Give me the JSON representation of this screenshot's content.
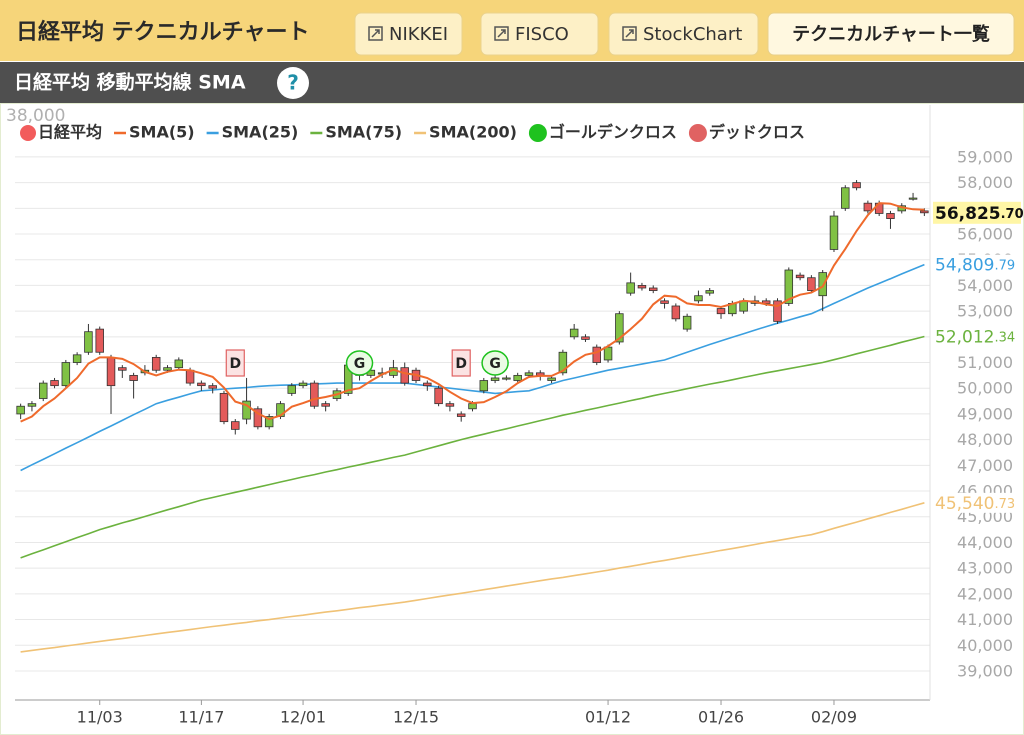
{
  "header": {
    "title": "日経平均 テクニカルチャート",
    "links": [
      "NIKKEI",
      "FISCO",
      "StockChart"
    ],
    "list_button": "テクニカルチャート一覧"
  },
  "subheader": {
    "title": "日経平均 移動平均線 SMA",
    "help": "?"
  },
  "chart_data": {
    "type": "candlestick",
    "corner_label": "38,000",
    "categories": [
      null,
      null,
      null,
      null,
      null,
      null,
      null,
      "11/03",
      null,
      null,
      null,
      null,
      null,
      null,
      null,
      null,
      "11/17",
      null,
      null,
      null,
      null,
      null,
      null,
      null,
      null,
      "12/01",
      null,
      null,
      null,
      null,
      null,
      null,
      null,
      null,
      null,
      "12/15",
      null,
      null,
      null,
      null,
      null,
      null,
      null,
      null,
      null,
      null,
      null,
      null,
      null,
      null,
      null,
      null,
      "01/12",
      null,
      null,
      null,
      null,
      null,
      null,
      null,
      null,
      null,
      "01/26",
      null,
      null,
      null,
      null,
      null,
      null,
      null,
      null,
      null,
      "02/09",
      null,
      null,
      null,
      null,
      null,
      null,
      null,
      null
    ],
    "ylim": [
      37870,
      61020
    ],
    "yticks": [
      {
        "value": 39000,
        "label": "39,000"
      },
      {
        "value": 40000,
        "label": "40,000"
      },
      {
        "value": 41000,
        "label": "41,000"
      },
      {
        "value": 42000,
        "label": "42,000"
      },
      {
        "value": 43000,
        "label": "43,000"
      },
      {
        "value": 44000,
        "label": "44,000"
      },
      {
        "value": 45000,
        "label": "45,000"
      },
      {
        "value": 46000,
        "label": "46,000"
      },
      {
        "value": 47000,
        "label": "47,000"
      },
      {
        "value": 48000,
        "label": "48,000"
      },
      {
        "value": 49000,
        "label": "49,000"
      },
      {
        "value": 50000,
        "label": "50,000"
      },
      {
        "value": 51000,
        "label": "51,000"
      },
      {
        "value": 52000,
        "label": "52,000"
      },
      {
        "value": 53000,
        "label": "53,000"
      },
      {
        "value": 54000,
        "label": "54,000"
      },
      {
        "value": 55000,
        "label": "55,000"
      },
      {
        "value": 56000,
        "label": "56,000"
      },
      {
        "value": 57000,
        "label": "57,000"
      },
      {
        "value": 58000,
        "label": "58,000"
      },
      {
        "value": 59000,
        "label": "59,000"
      }
    ],
    "grid": true,
    "series": [
      {
        "name": "日経平均",
        "color": "#f25c5c",
        "up_color": "#80c144",
        "down_color": "#e35a5a",
        "last_label": "56,825.70",
        "open": [
          49000,
          49300,
          49600,
          50300,
          50100,
          51000,
          51400,
          52300,
          51200,
          50800,
          50500,
          50600,
          51200,
          50700,
          50800,
          50700,
          50200,
          50100,
          49800,
          48700,
          48800,
          49200,
          48500,
          48900,
          49800,
          50100,
          50200,
          49400,
          49600,
          49800,
          50500,
          50500,
          50600,
          50500,
          50800,
          50700,
          50200,
          50000,
          49400,
          49000,
          49200,
          49900,
          50300,
          50400,
          50300,
          50500,
          50600,
          50300,
          50600,
          52000,
          52000,
          51600,
          51100,
          51800,
          53700,
          54000,
          53900,
          53400,
          53200,
          52300,
          53400,
          53700,
          53100,
          52900,
          53000,
          53300,
          53400,
          53400,
          53300,
          54400,
          54300,
          53600,
          55400,
          57000,
          58000,
          57200,
          57200,
          56800,
          56900,
          57400,
          56900
        ],
        "high": [
          49400,
          49500,
          50300,
          50400,
          51100,
          51400,
          52500,
          52400,
          51300,
          50900,
          50600,
          50900,
          51300,
          50900,
          51200,
          50800,
          50300,
          50200,
          49900,
          48800,
          50400,
          49300,
          49000,
          49500,
          50200,
          50300,
          50300,
          49500,
          50000,
          51000,
          50700,
          51000,
          50800,
          51100,
          51000,
          50800,
          50300,
          50100,
          49500,
          49100,
          49500,
          50400,
          50500,
          50500,
          50600,
          50700,
          50700,
          50500,
          51500,
          52500,
          52100,
          51700,
          51700,
          53000,
          54500,
          54100,
          54000,
          53500,
          53300,
          52900,
          53800,
          53900,
          53200,
          53400,
          53500,
          53600,
          53500,
          53500,
          54700,
          54500,
          54400,
          54600,
          56900,
          57900,
          58100,
          57300,
          57300,
          56900,
          57200,
          57600,
          57000
        ],
        "low": [
          48800,
          49100,
          49500,
          50000,
          50000,
          50900,
          51300,
          51300,
          49000,
          50400,
          49600,
          50500,
          50600,
          50600,
          50700,
          50100,
          49900,
          49800,
          48600,
          48200,
          48600,
          48400,
          48400,
          48800,
          49700,
          50000,
          49200,
          49100,
          49500,
          49700,
          50300,
          50400,
          50400,
          50400,
          50100,
          50200,
          49900,
          49300,
          49100,
          48700,
          49100,
          49800,
          50200,
          50300,
          50200,
          50400,
          50300,
          50200,
          50500,
          51900,
          51800,
          50900,
          51000,
          51700,
          53600,
          53800,
          53700,
          53100,
          52600,
          52200,
          53300,
          53600,
          52700,
          52800,
          52900,
          53200,
          53200,
          52500,
          53200,
          54200,
          53700,
          53000,
          55300,
          56900,
          57700,
          56800,
          56700,
          56200,
          56800,
          57300,
          56700
        ],
        "close": [
          49300,
          49400,
          50200,
          50100,
          51000,
          51300,
          52200,
          51400,
          50100,
          50700,
          50300,
          50700,
          50700,
          50800,
          51100,
          50200,
          50100,
          50000,
          48700,
          48400,
          49500,
          48500,
          48900,
          49400,
          50100,
          50200,
          49300,
          49300,
          49900,
          50900,
          50600,
          50700,
          50600,
          50800,
          50200,
          50300,
          50100,
          49400,
          49300,
          48900,
          49400,
          50300,
          50400,
          50400,
          50500,
          50600,
          50500,
          50400,
          51400,
          52300,
          51900,
          51000,
          51600,
          52900,
          54100,
          53900,
          53800,
          53300,
          52700,
          52800,
          53600,
          53800,
          52900,
          53300,
          53400,
          53400,
          53300,
          52600,
          54600,
          54300,
          53800,
          54500,
          56700,
          57800,
          57800,
          56900,
          56800,
          56600,
          57100,
          57400,
          56825.7
        ]
      },
      {
        "name": "SMA(5)",
        "color": "#ef6a2c",
        "values": [
          48700,
          48900,
          49300,
          49600,
          50000,
          50400,
          50960,
          51200,
          51200,
          51140,
          50940,
          50640,
          50500,
          50640,
          50720,
          50700,
          50580,
          50440,
          50020,
          49480,
          49340,
          49020,
          48800,
          48940,
          49280,
          49420,
          49580,
          49660,
          49760,
          49920,
          50000,
          50280,
          50540,
          50720,
          50580,
          50520,
          50400,
          50160,
          49860,
          49600,
          49420,
          49460,
          49660,
          49880,
          50200,
          50440,
          50480,
          50480,
          50680,
          51040,
          51300,
          51400,
          51640,
          51940,
          52300,
          52700,
          53260,
          53600,
          53560,
          53300,
          53240,
          53240,
          53160,
          53280,
          53400,
          53360,
          53260,
          53200,
          53460,
          53640,
          53720,
          53960,
          54780,
          55420,
          56120,
          56740,
          57200,
          57180,
          57040,
          56960,
          56945
        ]
      },
      {
        "name": "SMA(25)",
        "color": "#3a9fe0",
        "last_label": "54,809.79",
        "values": [
          46800,
          47020,
          47230,
          47450,
          47670,
          47880,
          48100,
          48320,
          48530,
          48750,
          48970,
          49180,
          49400,
          49530,
          49650,
          49780,
          49900,
          49930,
          49970,
          50000,
          50030,
          50070,
          50100,
          50120,
          50130,
          50150,
          50170,
          50180,
          50200,
          50200,
          50200,
          50200,
          50200,
          50200,
          50200,
          50150,
          50100,
          50050,
          50000,
          49950,
          49900,
          49850,
          49800,
          49830,
          49870,
          49900,
          50030,
          50170,
          50300,
          50400,
          50500,
          50600,
          50700,
          50780,
          50860,
          50940,
          51020,
          51100,
          51250,
          51400,
          51550,
          51700,
          51840,
          51980,
          52120,
          52260,
          52400,
          52530,
          52650,
          52780,
          52900,
          53100,
          53300,
          53500,
          53700,
          53900,
          54080,
          54260,
          54450,
          54630,
          54809.79
        ]
      },
      {
        "name": "SMA(75)",
        "color": "#6bb23e",
        "last_label": "52,012.34",
        "values": [
          43400,
          43560,
          43710,
          43870,
          44030,
          44190,
          44340,
          44500,
          44630,
          44760,
          44880,
          45010,
          45140,
          45270,
          45390,
          45520,
          45650,
          45750,
          45850,
          45950,
          46050,
          46150,
          46250,
          46350,
          46450,
          46550,
          46640,
          46740,
          46830,
          46930,
          47020,
          47120,
          47210,
          47310,
          47400,
          47520,
          47640,
          47760,
          47880,
          48000,
          48110,
          48210,
          48320,
          48420,
          48530,
          48630,
          48740,
          48840,
          48950,
          49040,
          49140,
          49230,
          49330,
          49420,
          49520,
          49610,
          49710,
          49800,
          49890,
          49980,
          50070,
          50160,
          50240,
          50330,
          50420,
          50510,
          50600,
          50680,
          50760,
          50840,
          50920,
          51000,
          51110,
          51220,
          51340,
          51450,
          51560,
          51670,
          51790,
          51900,
          52012.34
        ]
      },
      {
        "name": "SMA(200)",
        "color": "#f0c276",
        "last_label": "45,540.73",
        "values": [
          39740,
          39800,
          39860,
          39910,
          39970,
          40030,
          40090,
          40150,
          40210,
          40260,
          40320,
          40380,
          40440,
          40500,
          40550,
          40610,
          40670,
          40730,
          40780,
          40840,
          40890,
          40950,
          41000,
          41060,
          41120,
          41170,
          41230,
          41290,
          41340,
          41400,
          41460,
          41510,
          41570,
          41620,
          41680,
          41750,
          41820,
          41890,
          41960,
          42020,
          42090,
          42160,
          42230,
          42300,
          42370,
          42440,
          42510,
          42580,
          42640,
          42710,
          42780,
          42850,
          42920,
          43000,
          43070,
          43150,
          43230,
          43300,
          43380,
          43460,
          43530,
          43610,
          43690,
          43760,
          43840,
          43920,
          44000,
          44070,
          44150,
          44230,
          44300,
          44420,
          44550,
          44670,
          44790,
          44920,
          45040,
          45170,
          45290,
          45420,
          45540.73
        ]
      }
    ],
    "golden": {
      "name": "ゴールデンクロス",
      "color": "#1fc21f",
      "marks": [
        {
          "label": "G",
          "at": 30
        },
        {
          "label": "G",
          "at": 42
        }
      ]
    },
    "dead": {
      "name": "デッドクロス",
      "color": "#e06262",
      "marks": [
        {
          "label": "D",
          "at": 19
        },
        {
          "label": "D",
          "at": 39
        }
      ]
    }
  }
}
